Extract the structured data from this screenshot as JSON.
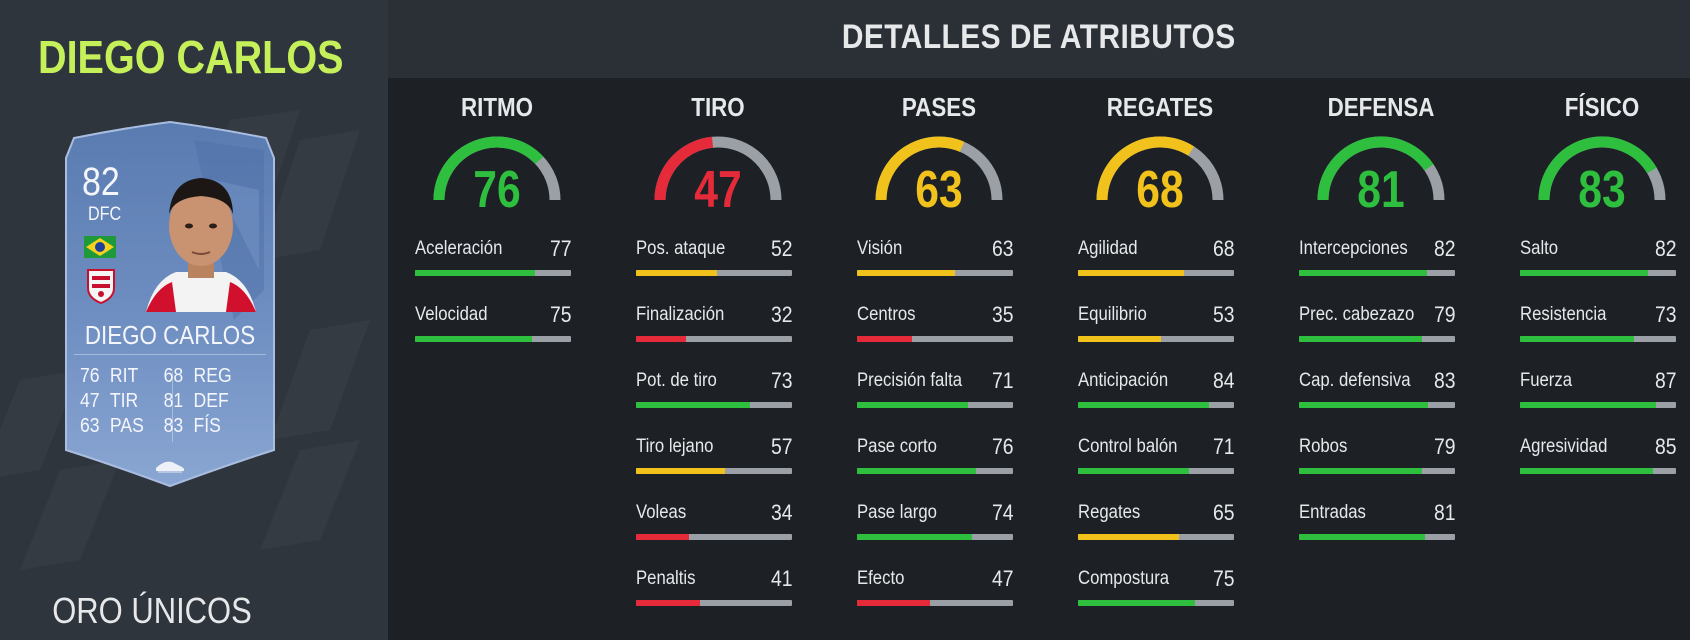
{
  "player": {
    "name": "DIEGO CARLOS",
    "card": {
      "rating": "82",
      "position": "DFC",
      "name": "DIEGO CARLOS",
      "stats": [
        {
          "value": "76",
          "label": "RIT"
        },
        {
          "value": "68",
          "label": "REG"
        },
        {
          "value": "47",
          "label": "TIR"
        },
        {
          "value": "81",
          "label": "DEF"
        },
        {
          "value": "63",
          "label": "PAS"
        },
        {
          "value": "83",
          "label": "FÍS"
        }
      ],
      "flag_icon": "brazil-flag-icon",
      "club_icon": "sevilla-crest-icon"
    },
    "version": "ORO ÚNICOS"
  },
  "header": {
    "title": "DETALLES DE ATRIBUTOS"
  },
  "colors": {
    "green": "#2fbf3f",
    "yellow": "#f2c21c",
    "red": "#e52b3a",
    "grey": "#9aa0a6",
    "name_green": "#c6f05a"
  },
  "categories": [
    {
      "title": "RITMO",
      "value": "76",
      "attributes": [
        {
          "label": "Aceleración",
          "value": "77"
        },
        {
          "label": "Velocidad",
          "value": "75"
        }
      ]
    },
    {
      "title": "TIRO",
      "value": "47",
      "attributes": [
        {
          "label": "Pos. ataque",
          "value": "52"
        },
        {
          "label": "Finalización",
          "value": "32"
        },
        {
          "label": "Pot. de tiro",
          "value": "73"
        },
        {
          "label": "Tiro lejano",
          "value": "57"
        },
        {
          "label": "Voleas",
          "value": "34"
        },
        {
          "label": "Penaltis",
          "value": "41"
        }
      ]
    },
    {
      "title": "PASES",
      "value": "63",
      "attributes": [
        {
          "label": "Visión",
          "value": "63"
        },
        {
          "label": "Centros",
          "value": "35"
        },
        {
          "label": "Precisión falta",
          "value": "71"
        },
        {
          "label": "Pase corto",
          "value": "76"
        },
        {
          "label": "Pase largo",
          "value": "74"
        },
        {
          "label": "Efecto",
          "value": "47"
        }
      ]
    },
    {
      "title": "REGATES",
      "value": "68",
      "attributes": [
        {
          "label": "Agilidad",
          "value": "68"
        },
        {
          "label": "Equilibrio",
          "value": "53"
        },
        {
          "label": "Anticipación",
          "value": "84"
        },
        {
          "label": "Control balón",
          "value": "71"
        },
        {
          "label": "Regates",
          "value": "65"
        },
        {
          "label": "Compostura",
          "value": "75"
        }
      ]
    },
    {
      "title": "DEFENSA",
      "value": "81",
      "attributes": [
        {
          "label": "Intercepciones",
          "value": "82"
        },
        {
          "label": "Prec. cabezazo",
          "value": "79"
        },
        {
          "label": "Cap. defensiva",
          "value": "83"
        },
        {
          "label": "Robos",
          "value": "79"
        },
        {
          "label": "Entradas",
          "value": "81"
        }
      ]
    },
    {
      "title": "FÍSICO",
      "value": "83",
      "attributes": [
        {
          "label": "Salto",
          "value": "82"
        },
        {
          "label": "Resistencia",
          "value": "73"
        },
        {
          "label": "Fuerza",
          "value": "87"
        },
        {
          "label": "Agresividad",
          "value": "85"
        }
      ]
    }
  ]
}
